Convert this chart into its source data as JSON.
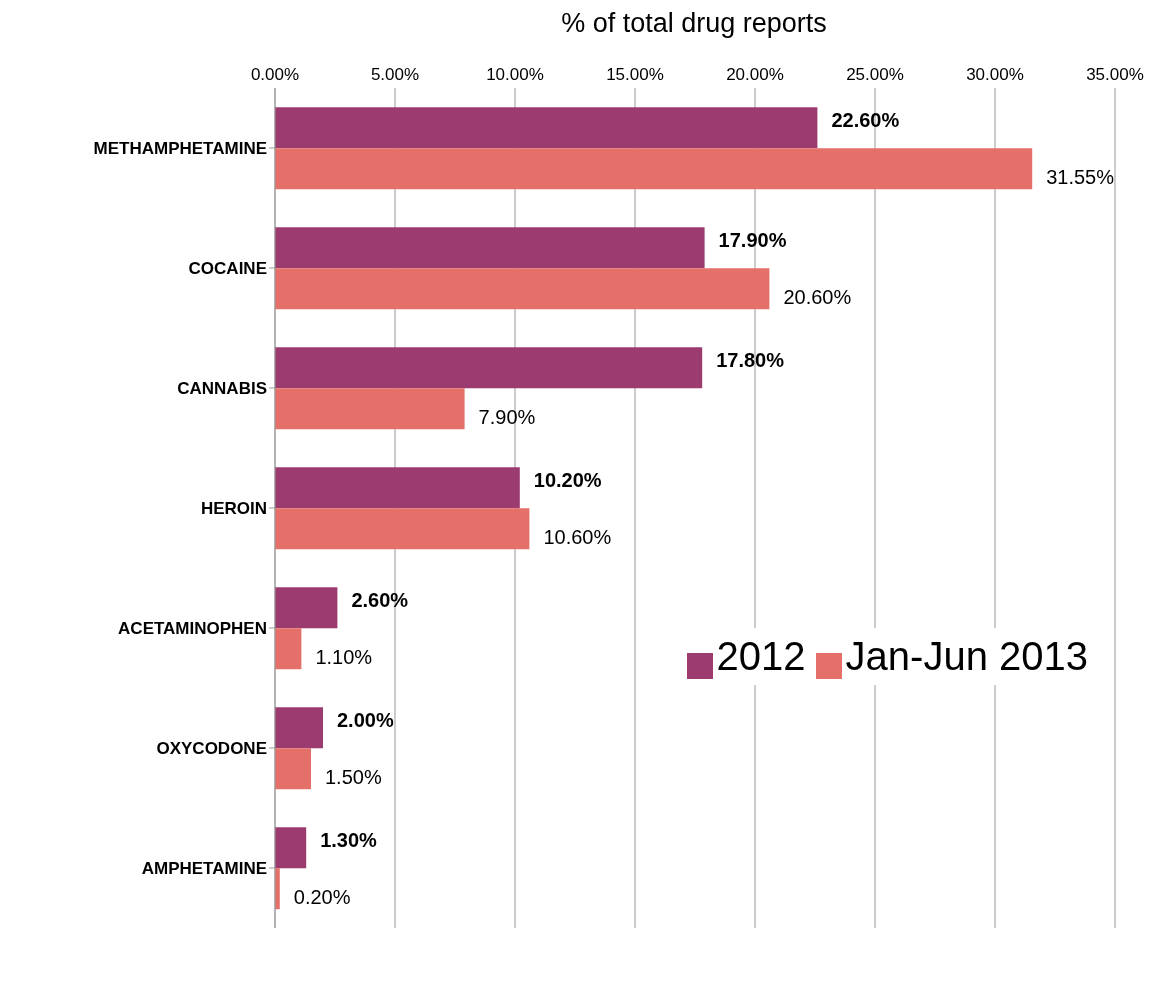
{
  "chart_data": {
    "type": "bar",
    "orientation": "horizontal",
    "xlabel": "% of total drug reports",
    "categories": [
      "METHAMPHETAMINE",
      "COCAINE",
      "CANNABIS",
      "HEROIN",
      "ACETAMINOPHEN",
      "OXYCODONE",
      "AMPHETAMINE"
    ],
    "series": [
      {
        "name": "2012",
        "color": "#9b3b6f",
        "values": [
          22.6,
          17.9,
          17.8,
          10.2,
          2.6,
          2.0,
          1.3
        ],
        "value_labels": [
          "22.60%",
          "17.90%",
          "17.80%",
          "10.20%",
          "2.60%",
          "2.00%",
          "1.30%"
        ]
      },
      {
        "name": "Jan-Jun 2013",
        "color": "#e5706a",
        "values": [
          31.55,
          20.6,
          7.9,
          10.6,
          1.1,
          1.5,
          0.2
        ],
        "value_labels": [
          "31.55%",
          "20.60%",
          "7.90%",
          "10.60%",
          "1.10%",
          "1.50%",
          "0.20%"
        ]
      }
    ],
    "xlim": [
      0,
      35
    ],
    "xticks": [
      {
        "value": 0,
        "label": "0.00%"
      },
      {
        "value": 5,
        "label": "5.00%"
      },
      {
        "value": 10,
        "label": "10.00%"
      },
      {
        "value": 15,
        "label": "15.00%"
      },
      {
        "value": 20,
        "label": "20.00%"
      },
      {
        "value": 25,
        "label": "25.00%"
      },
      {
        "value": 30,
        "label": "30.00%"
      },
      {
        "value": 35,
        "label": "35.00%"
      }
    ],
    "grid": "x",
    "legend": "right"
  }
}
